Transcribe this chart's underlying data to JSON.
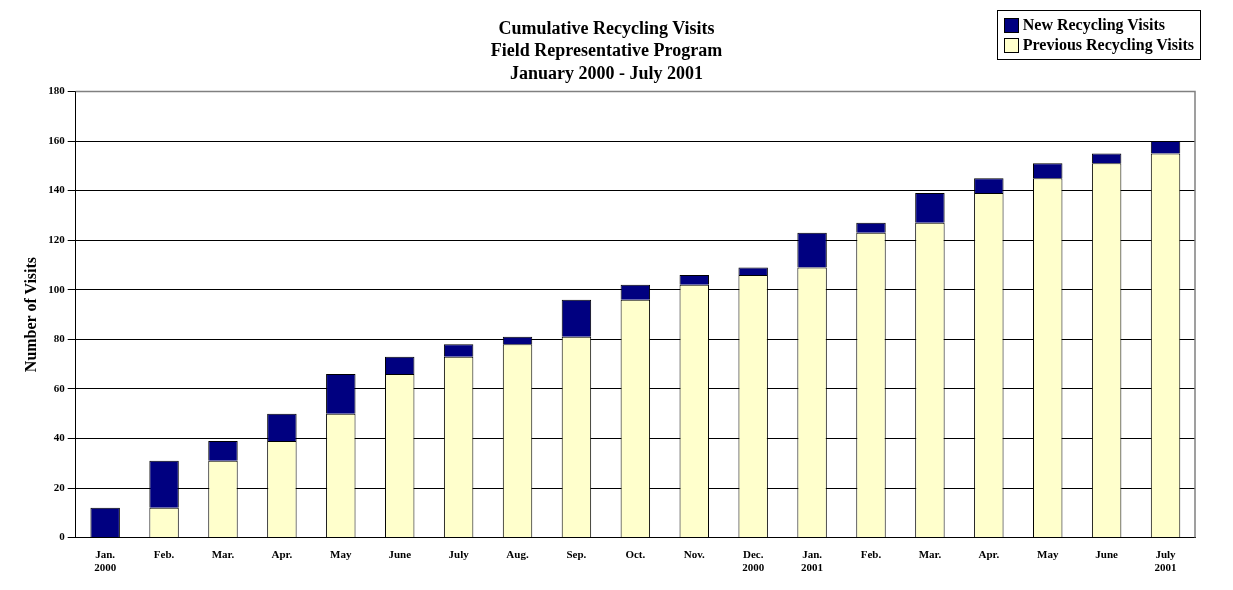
{
  "chart_data": {
    "type": "bar",
    "title": "Cumulative Recycling Visits\nField Representative Program\nJanuary 2000 - July 2001",
    "ylabel": "Number of Visits",
    "categories": [
      "Jan.\n2000",
      "Feb.",
      "Mar.",
      "Apr.",
      "May",
      "June",
      "July",
      "Aug.",
      "Sep.",
      "Oct.",
      "Nov.",
      "Dec.\n2000",
      "Jan.\n2001",
      "Feb.",
      "Mar.",
      "Apr.",
      "May",
      "June",
      "July\n2001"
    ],
    "stacked": true,
    "series": [
      {
        "name": "Previous Recycling Visits",
        "color": "#ffffcc",
        "values": [
          0,
          12,
          31,
          39,
          50,
          66,
          73,
          78,
          81,
          96,
          102,
          106,
          109,
          123,
          127,
          139,
          145,
          151,
          155
        ]
      },
      {
        "name": "New Recycling Visits",
        "color": "#000080",
        "values": [
          12,
          19,
          8,
          11,
          16,
          7,
          5,
          3,
          15,
          6,
          4,
          3,
          14,
          4,
          12,
          6,
          6,
          4,
          5
        ]
      }
    ],
    "ylim": [
      0,
      180
    ],
    "yticks": [
      0,
      20,
      40,
      60,
      80,
      100,
      120,
      140,
      160,
      180
    ],
    "grid": "y",
    "legend": "top right"
  }
}
